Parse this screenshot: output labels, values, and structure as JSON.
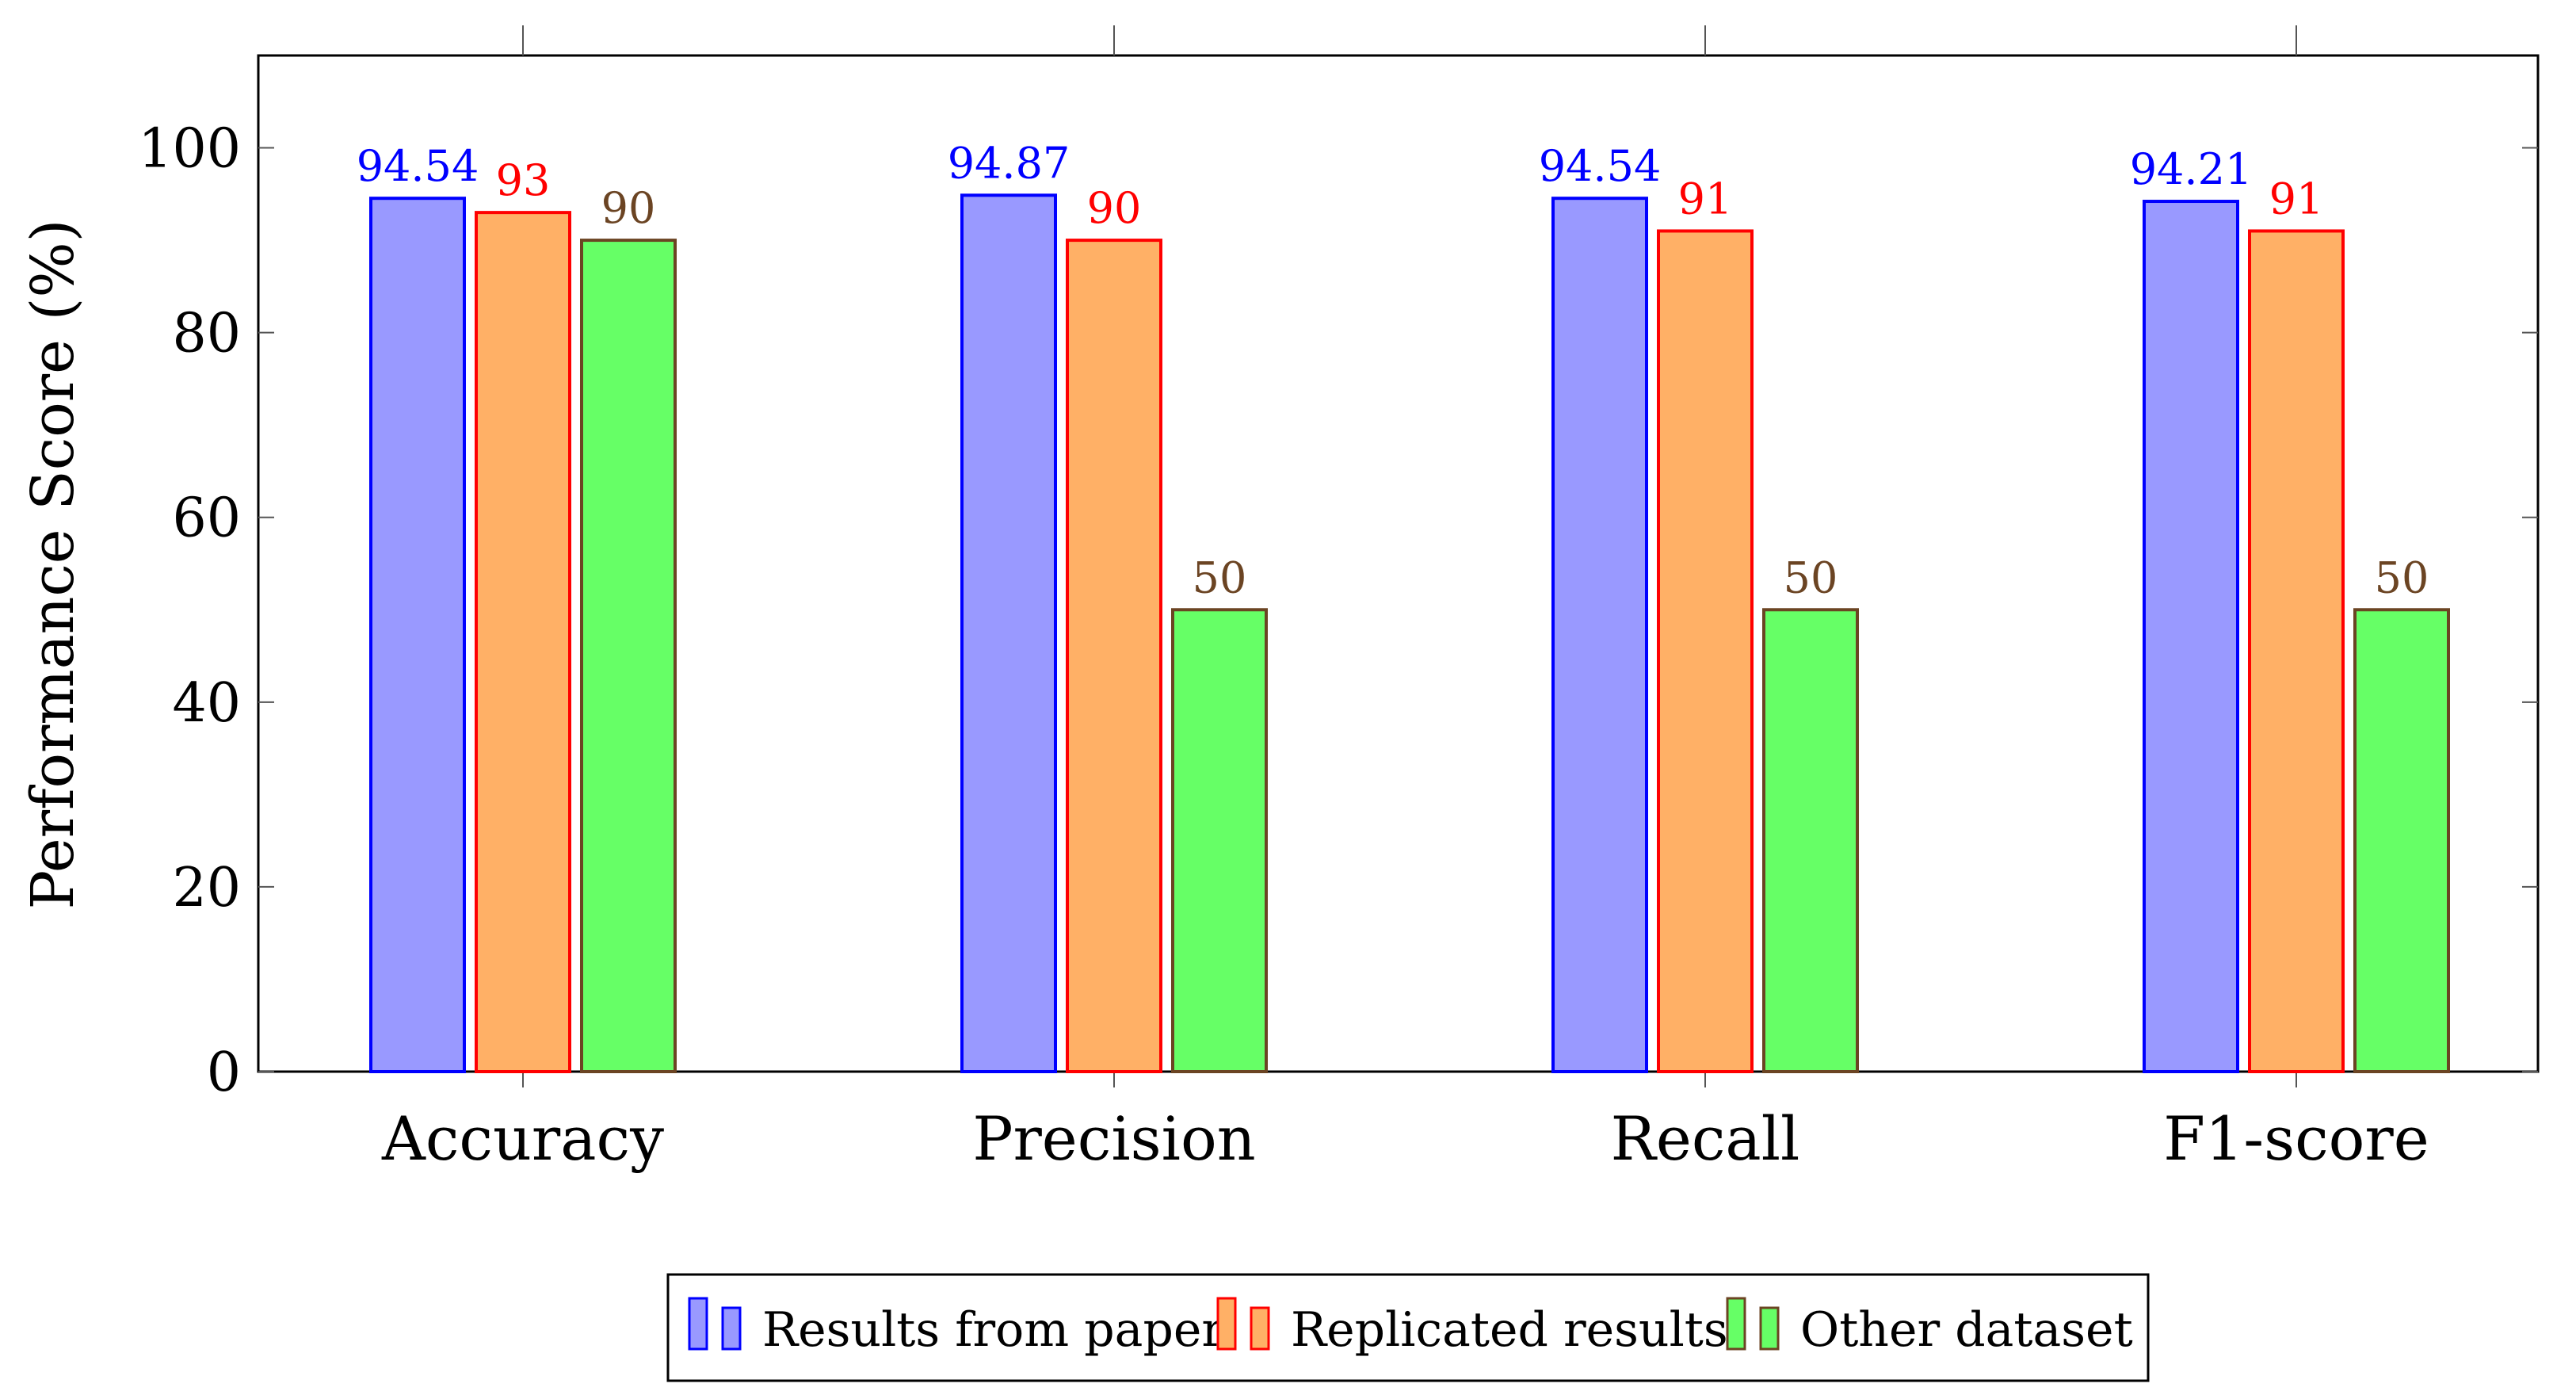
{
  "chart_data": {
    "type": "bar",
    "title": "",
    "xlabel": "",
    "ylabel": "Performance Score (%)",
    "ylim": [
      0,
      110
    ],
    "yticks": [
      0,
      20,
      40,
      60,
      80,
      100
    ],
    "grid": false,
    "legend_position": "bottom-center",
    "categories": [
      "Accuracy",
      "Precision",
      "Recall",
      "F1-score"
    ],
    "series": [
      {
        "name": "Results from paper",
        "values": [
          94.54,
          94.87,
          94.54,
          94.21
        ],
        "labels": [
          "94.54",
          "94.87",
          "94.54",
          "94.21"
        ],
        "fill": "#9999ff",
        "stroke": "#0000ff",
        "label_color": "#0000ff"
      },
      {
        "name": "Replicated results",
        "values": [
          93,
          90,
          91,
          91
        ],
        "labels": [
          "93",
          "90",
          "91",
          "91"
        ],
        "fill": "#ffb066",
        "stroke": "#ff0000",
        "label_color": "#ff0000"
      },
      {
        "name": "Other dataset",
        "values": [
          90,
          50,
          50,
          50
        ],
        "labels": [
          "90",
          "50",
          "50",
          "50"
        ],
        "fill": "#66ff66",
        "stroke": "#6b4423",
        "label_color": "#6b4423"
      }
    ]
  }
}
